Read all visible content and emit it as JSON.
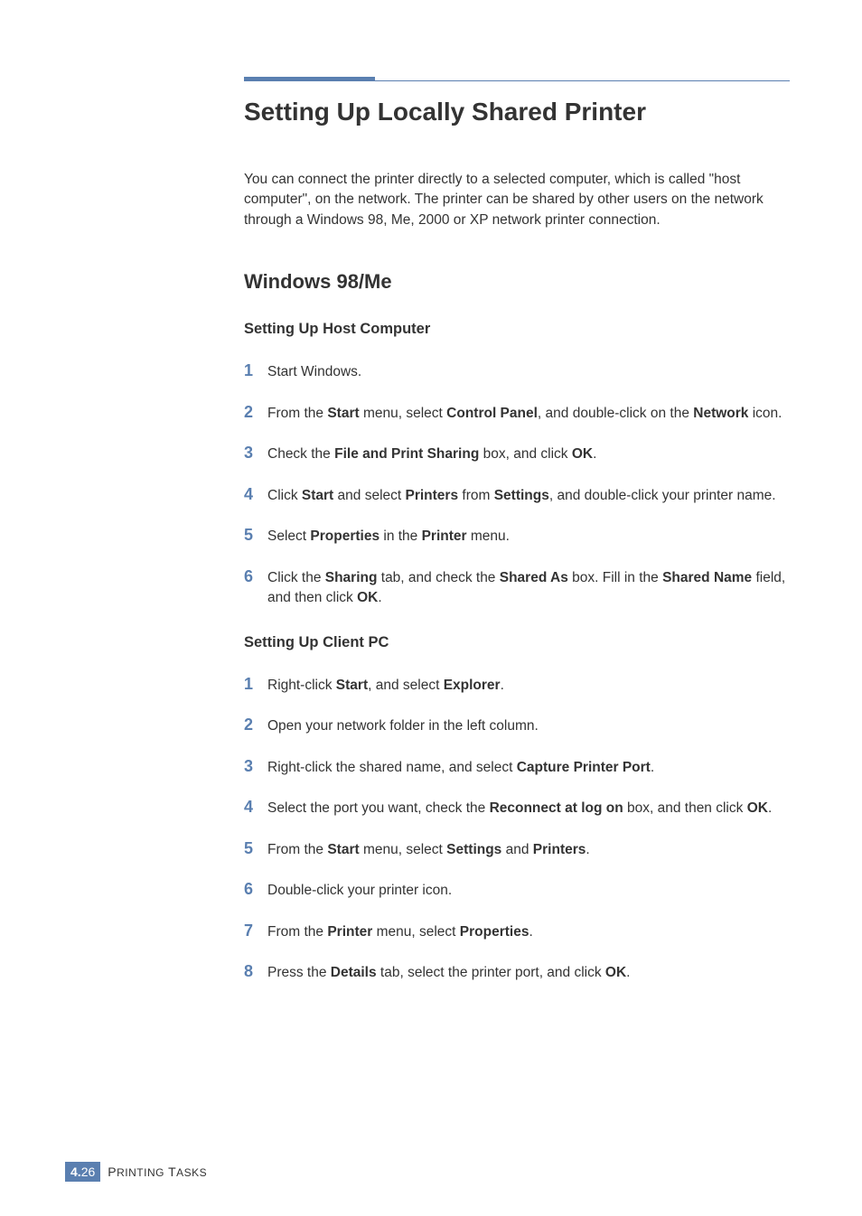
{
  "title": "Setting Up Locally Shared Printer",
  "intro": "You can connect the printer directly to a selected computer, which is called \"host computer\", on the network. The printer can be shared by other users on the network through a Windows 98, Me, 2000 or XP network printer connection.",
  "section": "Windows 98/Me",
  "sub1": "Setting Up Host Computer",
  "host": {
    "s1": "Start Windows.",
    "s2a": "From the ",
    "s2b": "Start",
    "s2c": " menu, select ",
    "s2d": "Control Panel",
    "s2e": ", and double-click on the ",
    "s2f": "Network",
    "s2g": " icon.",
    "s3a": "Check the ",
    "s3b": "File and Print Sharing",
    "s3c": " box, and click ",
    "s3d": "OK",
    "s3e": ".",
    "s4a": "Click ",
    "s4b": "Start",
    "s4c": " and select ",
    "s4d": "Printers",
    "s4e": " from ",
    "s4f": "Settings",
    "s4g": ", and double-click your printer name.",
    "s5a": "Select ",
    "s5b": "Properties",
    "s5c": " in the ",
    "s5d": "Printer",
    "s5e": " menu.",
    "s6a": "Click the ",
    "s6b": "Sharing",
    "s6c": " tab, and check the ",
    "s6d": "Shared As",
    "s6e": " box. Fill in the ",
    "s6f": "Shared Name",
    "s6g": " field, and then click ",
    "s6h": "OK",
    "s6i": "."
  },
  "sub2": "Setting Up Client PC",
  "client": {
    "s1a": "Right-click ",
    "s1b": "Start",
    "s1c": ", and select ",
    "s1d": "Explorer",
    "s1e": ".",
    "s2": "Open your network folder in the left column.",
    "s3a": "Right-click the shared name, and select ",
    "s3b": "Capture Printer Port",
    "s3c": ".",
    "s4a": "Select the port you want, check the ",
    "s4b": "Reconnect at log on",
    "s4c": " box, and then click ",
    "s4d": "OK",
    "s4e": ".",
    "s5a": "From the ",
    "s5b": "Start",
    "s5c": " menu, select ",
    "s5d": "Settings",
    "s5e": " and ",
    "s5f": "Printers",
    "s5g": ".",
    "s6": "Double-click your printer icon.",
    "s7a": "From the ",
    "s7b": "Printer",
    "s7c": " menu, select ",
    "s7d": "Properties",
    "s7e": ".",
    "s8a": "Press the ",
    "s8b": "Details",
    "s8c": " tab, select the printer port, and click ",
    "s8d": "OK",
    "s8e": "."
  },
  "footer": {
    "chapter": "4.",
    "page": "26",
    "label_a": "P",
    "label_b": "RINTING",
    "label_c": " T",
    "label_d": "ASKS"
  },
  "colors": {
    "accent": "#5a7fb0",
    "text": "#333333",
    "bg": "#ffffff"
  }
}
